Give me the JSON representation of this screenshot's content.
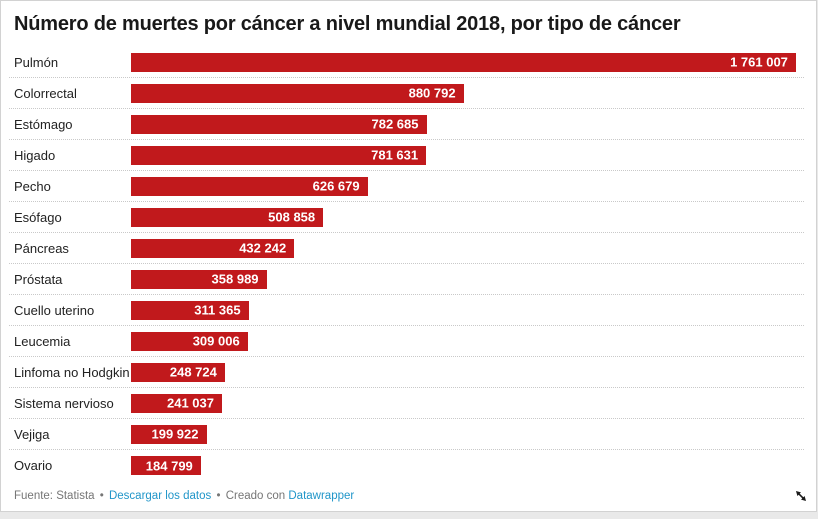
{
  "title": "Número de muertes por cáncer a nivel mundial 2018, por tipo de cáncer",
  "chart_data": {
    "type": "bar",
    "orientation": "horizontal",
    "title": "Número de muertes por cáncer a nivel mundial 2018, por tipo de cáncer",
    "categories": [
      "Pulmón",
      "Colorrectal",
      "Estómago",
      "Higado",
      "Pecho",
      "Esófago",
      "Páncreas",
      "Próstata",
      "Cuello uterino",
      "Leucemia",
      "Linfoma no Hodgkin",
      "Sistema nervioso",
      "Vejiga",
      "Ovario"
    ],
    "values": [
      1761007,
      880792,
      782685,
      781631,
      626679,
      508858,
      432242,
      358989,
      311365,
      309006,
      248724,
      241037,
      199922,
      184799
    ],
    "value_labels": [
      "1 761 007",
      "880 792",
      "782 685",
      "781 631",
      "626 679",
      "508 858",
      "432 242",
      "358 989",
      "311 365",
      "309 006",
      "248 724",
      "241 037",
      "199 922",
      "184 799"
    ],
    "xlim": [
      0,
      1761007
    ],
    "xlabel": "",
    "ylabel": "",
    "grid": "dotted-row-separators",
    "legend": "none",
    "bar_color": "#c1191c",
    "value_label_position": "inside-end"
  },
  "footer": {
    "source": "Fuente: Statista",
    "separator": "•",
    "download_label": "Descargar los datos",
    "created_with": "Creado con",
    "datawrapper_label": "Datawrapper"
  },
  "colors": {
    "bar": "#c1191c",
    "title_text": "#191919",
    "label_text": "#222222",
    "value_text": "#ffffff",
    "footer_text": "#767676",
    "link_blue": "#2196c9",
    "separator_line": "#c9c9c9",
    "panel_border": "#d2d2d2",
    "page_background": "#e9e9e9",
    "panel_background": "#ffffff"
  }
}
